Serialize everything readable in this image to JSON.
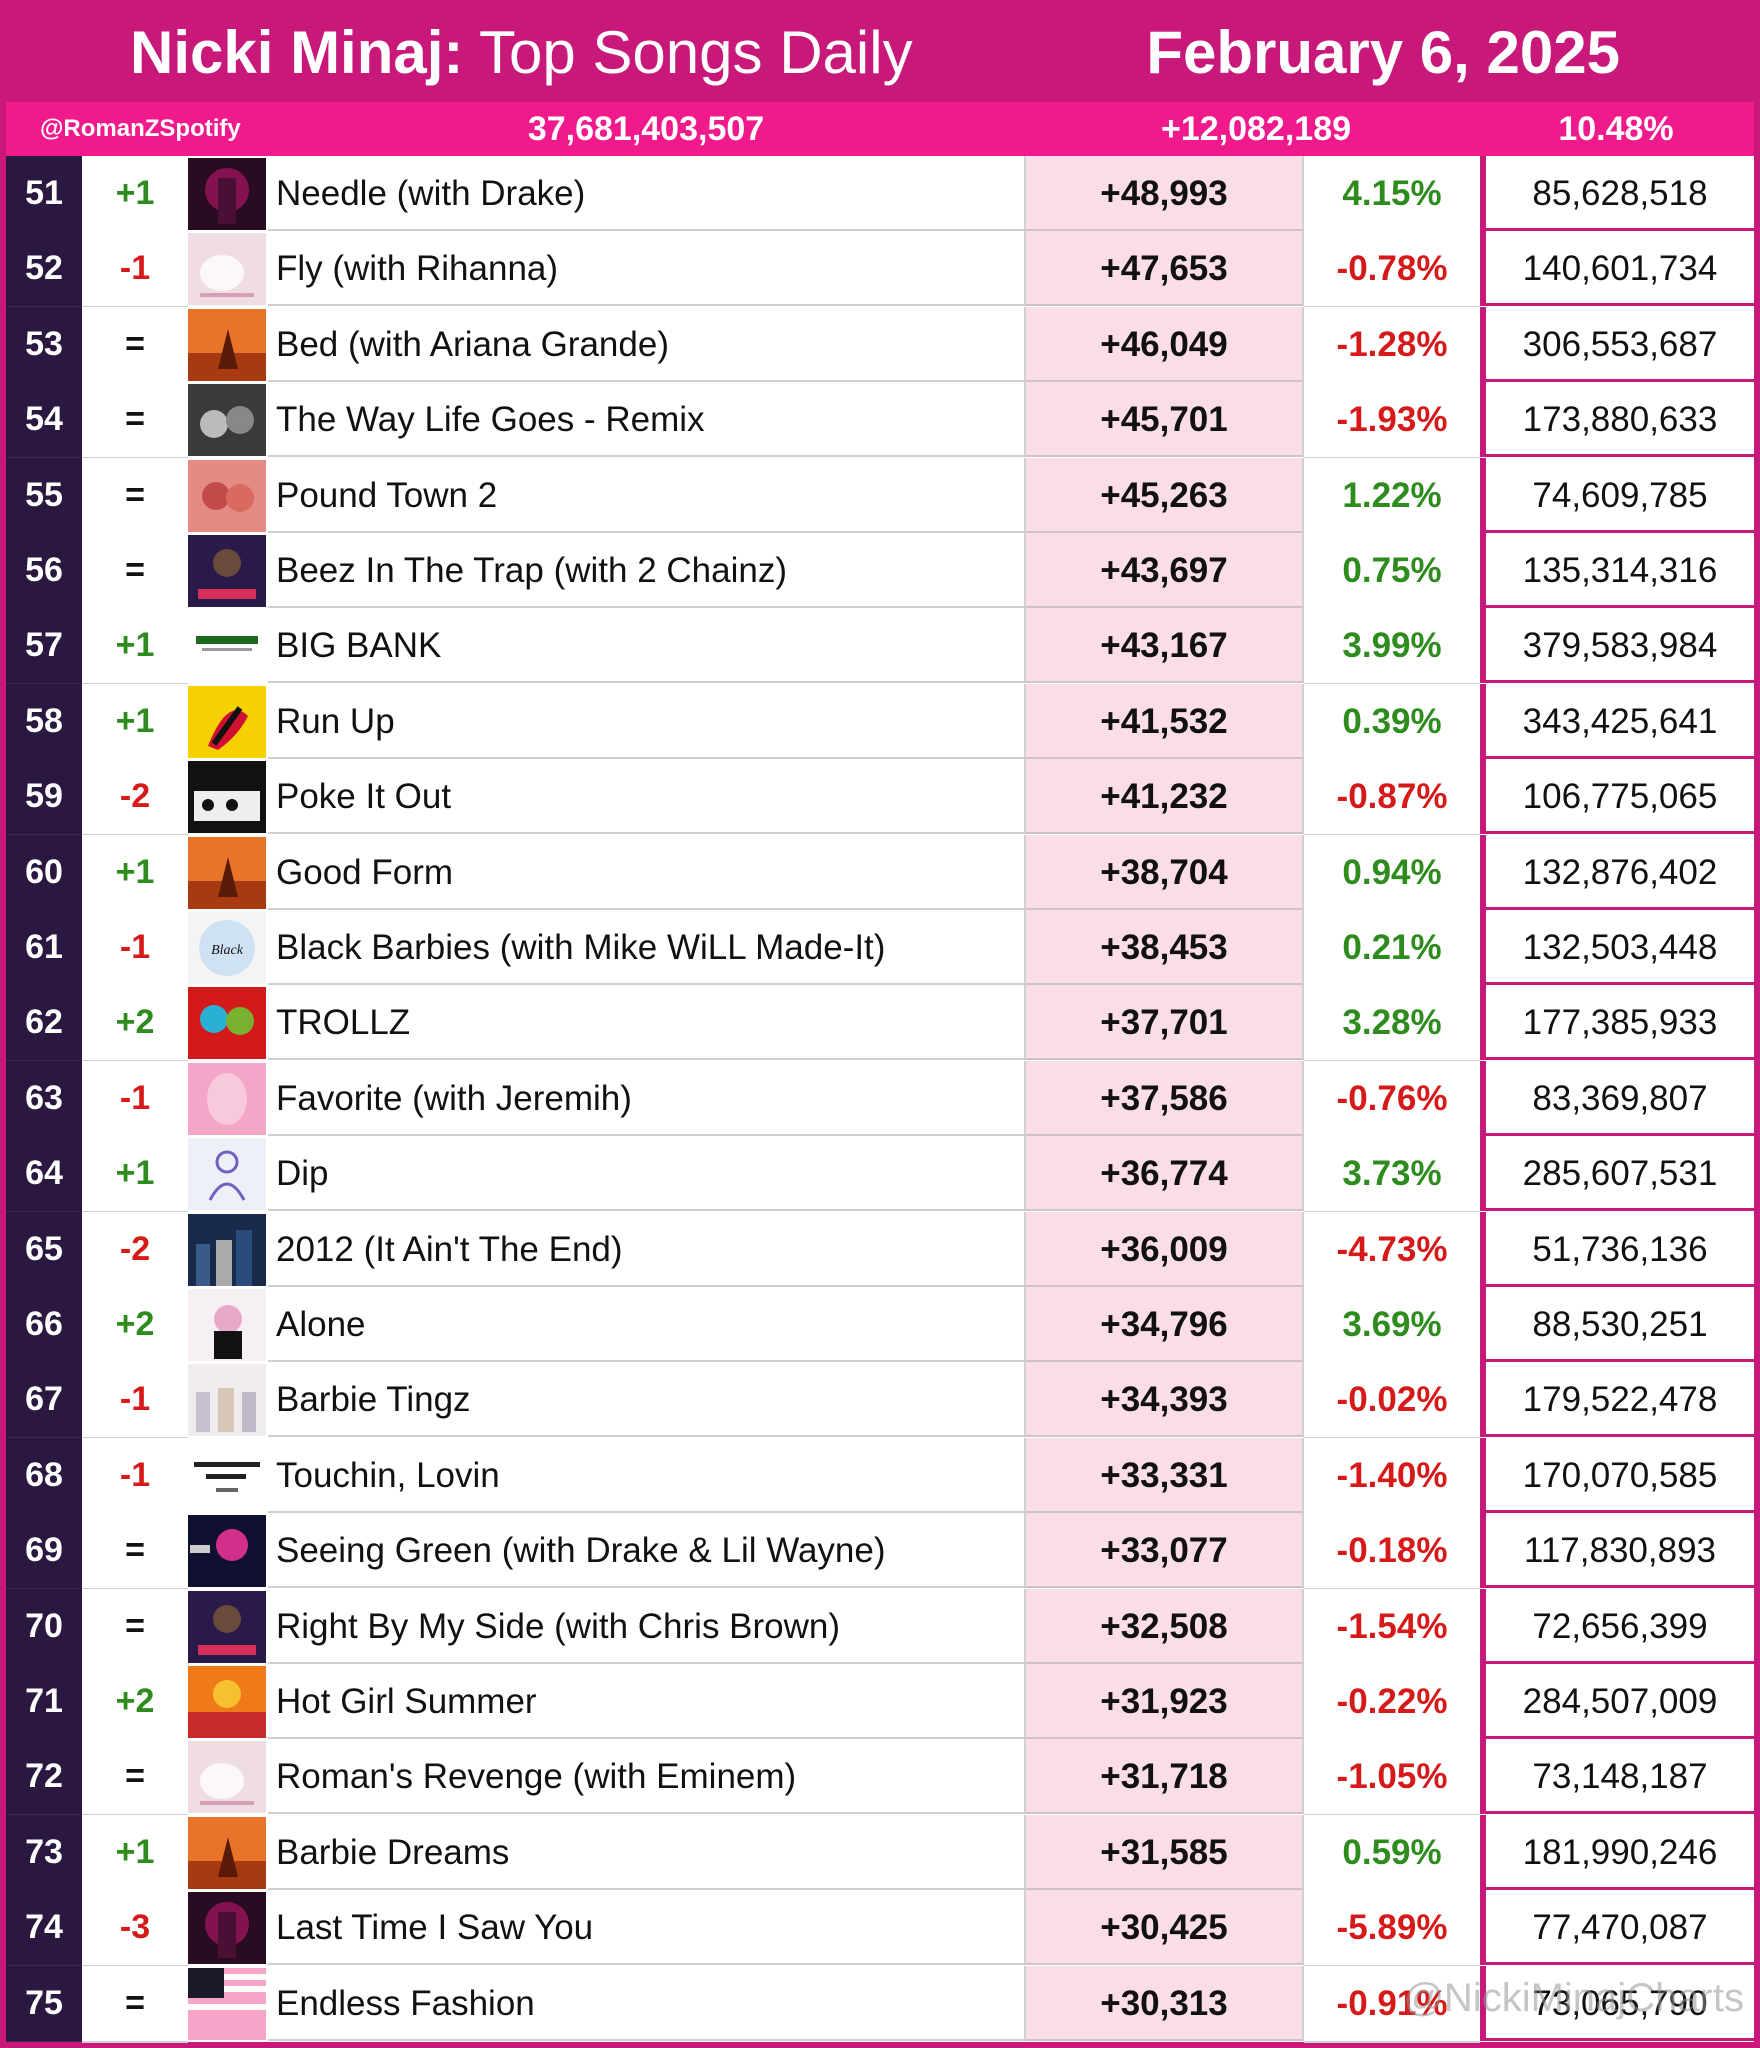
{
  "header": {
    "artist": "Nicki Minaj:",
    "chart_name": "Top Songs Daily",
    "date": "February 6, 2025"
  },
  "summary": {
    "handle": "@RomanZSpotify",
    "total_streams": "37,681,403,507",
    "daily_gain": "+12,082,189",
    "daily_pct": "10.48%"
  },
  "watermark": "@NickiMinajCharts",
  "rows": [
    {
      "rank": "51",
      "move": "+1",
      "title": "Needle (with Drake)",
      "daily": "+48,993",
      "pct": "4.15%",
      "total": "85,628,518",
      "art": "art-dark-pink"
    },
    {
      "rank": "52",
      "move": "-1",
      "title": "Fly (with Rihanna)",
      "daily": "+47,653",
      "pct": "-0.78%",
      "total": "140,601,734",
      "art": "art-pink-friday"
    },
    {
      "rank": "53",
      "move": "=",
      "title": "Bed (with Ariana Grande)",
      "daily": "+46,049",
      "pct": "-1.28%",
      "total": "306,553,687",
      "art": "art-queen"
    },
    {
      "rank": "54",
      "move": "=",
      "title": "The Way Life Goes - Remix",
      "daily": "+45,701",
      "pct": "-1.93%",
      "total": "173,880,633",
      "art": "art-grey"
    },
    {
      "rank": "55",
      "move": "=",
      "title": "Pound Town 2",
      "daily": "+45,263",
      "pct": "1.22%",
      "total": "74,609,785",
      "art": "art-salmon"
    },
    {
      "rank": "56",
      "move": "=",
      "title": "Beez In The Trap (with 2 Chainz)",
      "daily": "+43,697",
      "pct": "0.75%",
      "total": "135,314,316",
      "art": "art-reup"
    },
    {
      "rank": "57",
      "move": "+1",
      "title": "BIG BANK",
      "daily": "+43,167",
      "pct": "3.99%",
      "total": "379,583,984",
      "art": "art-white"
    },
    {
      "rank": "58",
      "move": "+1",
      "title": "Run Up",
      "daily": "+41,532",
      "pct": "0.39%",
      "total": "343,425,641",
      "art": "art-yellow"
    },
    {
      "rank": "59",
      "move": "-2",
      "title": "Poke It Out",
      "daily": "+41,232",
      "pct": "-0.87%",
      "total": "106,775,065",
      "art": "art-bw"
    },
    {
      "rank": "60",
      "move": "+1",
      "title": "Good Form",
      "daily": "+38,704",
      "pct": "0.94%",
      "total": "132,876,402",
      "art": "art-queen"
    },
    {
      "rank": "61",
      "move": "-1",
      "title": "Black Barbies (with Mike WiLL Made-It)",
      "daily": "+38,453",
      "pct": "0.21%",
      "total": "132,503,448",
      "art": "art-blue-badge"
    },
    {
      "rank": "62",
      "move": "+2",
      "title": "TROLLZ",
      "daily": "+37,701",
      "pct": "3.28%",
      "total": "177,385,933",
      "art": "art-red"
    },
    {
      "rank": "63",
      "move": "-1",
      "title": "Favorite (with Jeremih)",
      "daily": "+37,586",
      "pct": "-0.76%",
      "total": "83,369,807",
      "art": "art-light-pink"
    },
    {
      "rank": "64",
      "move": "+1",
      "title": "Dip",
      "daily": "+36,774",
      "pct": "3.73%",
      "total": "285,607,531",
      "art": "art-sketch"
    },
    {
      "rank": "65",
      "move": "-2",
      "title": " 2012 (It Ain't The End)",
      "daily": "+36,009",
      "pct": "-4.73%",
      "total": "51,736,136",
      "art": "art-city"
    },
    {
      "rank": "66",
      "move": "+2",
      "title": "Alone",
      "daily": "+34,796",
      "pct": "3.69%",
      "total": "88,530,251",
      "art": "art-alone"
    },
    {
      "rank": "67",
      "move": "-1",
      "title": "Barbie Tingz",
      "daily": "+34,393",
      "pct": "-0.02%",
      "total": "179,522,478",
      "art": "art-tingz"
    },
    {
      "rank": "68",
      "move": "-1",
      "title": "Touchin, Lovin",
      "daily": "+33,331",
      "pct": "-1.40%",
      "total": "170,070,585",
      "art": "art-text-white"
    },
    {
      "rank": "69",
      "move": "=",
      "title": "Seeing Green (with Drake & Lil Wayne)",
      "daily": "+33,077",
      "pct": "-0.18%",
      "total": "117,830,893",
      "art": "art-space"
    },
    {
      "rank": "70",
      "move": "=",
      "title": "Right By My Side (with Chris Brown)",
      "daily": "+32,508",
      "pct": "-1.54%",
      "total": "72,656,399",
      "art": "art-reup"
    },
    {
      "rank": "71",
      "move": "+2",
      "title": "Hot Girl Summer",
      "daily": "+31,923",
      "pct": "-0.22%",
      "total": "284,507,009",
      "art": "art-orange"
    },
    {
      "rank": "72",
      "move": "=",
      "title": "Roman's Revenge (with Eminem)",
      "daily": "+31,718",
      "pct": "-1.05%",
      "total": "73,148,187",
      "art": "art-pink-friday"
    },
    {
      "rank": "73",
      "move": "+1",
      "title": "Barbie Dreams",
      "daily": "+31,585",
      "pct": "0.59%",
      "total": "181,990,246",
      "art": "art-queen"
    },
    {
      "rank": "74",
      "move": "-3",
      "title": "Last Time I Saw You",
      "daily": "+30,425",
      "pct": "-5.89%",
      "total": "77,470,087",
      "art": "art-dark-pink"
    },
    {
      "rank": "75",
      "move": "=",
      "title": "Endless Fashion",
      "daily": "+30,313",
      "pct": "-0.91%",
      "total": "73,065,790",
      "art": "art-flag"
    }
  ]
}
